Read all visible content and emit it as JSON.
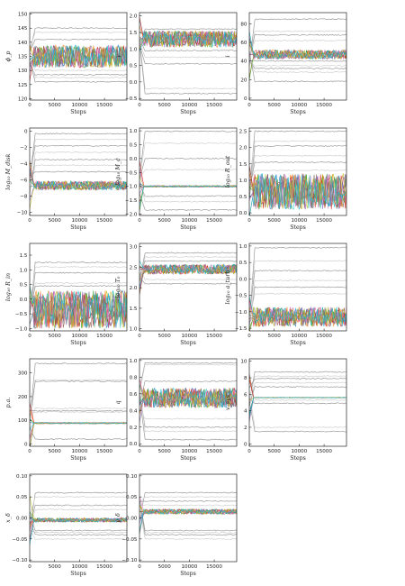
{
  "colors": {
    "burnin_gray": "#9a9a9a",
    "light_gray": "#cfcfcf",
    "chain_palette": [
      "#1f77b4",
      "#ff7f0e",
      "#2ca02c",
      "#d62728",
      "#9467bd",
      "#8c564b",
      "#e377c2",
      "#7f7f7f",
      "#bcbd22",
      "#17becf"
    ]
  },
  "chart_data": [
    {
      "type": "line",
      "ylabel": "ϕ_p",
      "xlabel": "Steps",
      "xlim": [
        0,
        19500
      ],
      "ylim": [
        119.5,
        150.5
      ],
      "xticks": [
        0,
        5000,
        10000,
        15000
      ],
      "yticks": [
        120,
        125,
        130,
        135,
        140,
        145,
        150
      ],
      "gray_levels": [
        145,
        143.5,
        141,
        130,
        128.5,
        127.5,
        126
      ],
      "colored_band": {
        "center": 135,
        "half_width": 4
      }
    },
    {
      "type": "line",
      "ylabel": "γ",
      "xlabel": "Steps",
      "xlim": [
        0,
        19500
      ],
      "ylim": [
        -0.55,
        2.1
      ],
      "xticks": [
        0,
        5000,
        10000,
        15000
      ],
      "yticks": [
        -0.5,
        0.0,
        0.5,
        1.0,
        1.5,
        2.0
      ],
      "gray_levels": [
        1.6,
        1.5,
        1.4,
        1.2,
        0.95,
        0.75,
        0.55,
        -0.2,
        -0.35
      ],
      "colored_band": {
        "center": 1.3,
        "half_width": 0.25
      }
    },
    {
      "type": "line",
      "ylabel": "i",
      "xlabel": "Steps",
      "xlim": [
        0,
        19500
      ],
      "ylim": [
        -2,
        92
      ],
      "xticks": [
        0,
        5000,
        10000,
        15000
      ],
      "yticks": [
        0,
        20,
        40,
        60,
        80
      ],
      "gray_levels": [
        85,
        72,
        68,
        62,
        40,
        35,
        32,
        28,
        18
      ],
      "colored_band": {
        "center": 47,
        "half_width": 5
      }
    },
    {
      "type": "line",
      "ylabel": "log₁₀ M_disk",
      "xlabel": "Steps",
      "xlim": [
        0,
        19500
      ],
      "ylim": [
        -10.4,
        0.4
      ],
      "xticks": [
        0,
        5000,
        10000,
        15000
      ],
      "yticks": [
        -10,
        -8,
        -6,
        -4,
        -2,
        0
      ],
      "gray_levels": [
        -0.3,
        -1.0,
        -1.8,
        -2.6,
        -3.5,
        -4.2,
        -5.0
      ],
      "colored_band": {
        "center": -6.7,
        "half_width": 0.55
      }
    },
    {
      "type": "line",
      "ylabel": "log₁₀ M_c",
      "xlabel": "Steps",
      "xlim": [
        0,
        19500
      ],
      "ylim": [
        -2.05,
        1.1
      ],
      "xticks": [
        0,
        5000,
        10000,
        15000
      ],
      "yticks": [
        -2.0,
        -1.5,
        -1.0,
        -0.5,
        0.0,
        0.5,
        1.0
      ],
      "gray_levels": [
        0.98,
        0.55,
        0.0,
        -0.4,
        -1.35,
        -1.55,
        -1.85
      ],
      "colored_band": {
        "center": -1.0,
        "half_width": 0.03
      }
    },
    {
      "type": "line",
      "ylabel": "log₁₀ R_out",
      "xlabel": "Steps",
      "xlim": [
        0,
        19500
      ],
      "ylim": [
        -0.08,
        2.6
      ],
      "xticks": [
        0,
        5000,
        10000,
        15000
      ],
      "yticks": [
        0.0,
        0.5,
        1.0,
        1.5,
        2.0,
        2.5
      ],
      "gray_levels": [
        2.5,
        2.2,
        2.05,
        1.75,
        1.55,
        1.3
      ],
      "colored_band": {
        "center": 0.65,
        "half_width": 0.55
      }
    },
    {
      "type": "line",
      "ylabel": "log₁₀ R_in",
      "xlabel": "Steps",
      "xlim": [
        0,
        19500
      ],
      "ylim": [
        -1.08,
        1.9
      ],
      "xticks": [
        0,
        5000,
        10000,
        15000
      ],
      "yticks": [
        -1.0,
        -0.5,
        0.0,
        0.5,
        1.0,
        1.5
      ],
      "gray_levels": [
        1.25,
        1.1,
        0.9,
        0.55,
        0.45
      ],
      "colored_band": {
        "center": -0.35,
        "half_width": 0.65
      }
    },
    {
      "type": "line",
      "ylabel": "log₁₀ T₀",
      "xlabel": "Steps",
      "xlim": [
        0,
        19500
      ],
      "ylim": [
        0.95,
        3.08
      ],
      "xticks": [
        0,
        5000,
        10000,
        15000
      ],
      "yticks": [
        1.0,
        1.5,
        2.0,
        2.5,
        3.0
      ],
      "gray_levels": [
        2.85,
        2.75,
        2.65,
        2.2,
        2.1
      ],
      "colored_band": {
        "center": 2.45,
        "half_width": 0.12
      }
    },
    {
      "type": "line",
      "ylabel": "log₁₀ a_turb",
      "xlabel": "Steps",
      "xlim": [
        0,
        19500
      ],
      "ylim": [
        -1.58,
        1.08
      ],
      "xticks": [
        0,
        5000,
        10000,
        15000
      ],
      "yticks": [
        -1.5,
        -1.0,
        -0.5,
        0.0,
        0.5,
        1.0
      ],
      "gray_levels": [
        0.95,
        0.55,
        0.25,
        -0.05,
        -0.25,
        -0.45
      ],
      "colored_band": {
        "center": -1.15,
        "half_width": 0.3
      }
    },
    {
      "type": "line",
      "ylabel": "p.a.",
      "xlabel": "Steps",
      "xlim": [
        0,
        19500
      ],
      "ylim": [
        -10,
        360
      ],
      "xticks": [
        0,
        5000,
        10000,
        15000
      ],
      "yticks": [
        0,
        100,
        200,
        300
      ],
      "gray_levels": [
        340,
        270,
        265,
        150,
        140,
        135,
        20
      ],
      "colored_band": {
        "center": 88,
        "half_width": 3
      }
    },
    {
      "type": "line",
      "ylabel": "q",
      "xlabel": "Steps",
      "xlim": [
        0,
        19500
      ],
      "ylim": [
        -0.03,
        1.02
      ],
      "xticks": [
        0,
        5000,
        10000,
        15000
      ],
      "yticks": [
        0.0,
        0.2,
        0.4,
        0.6,
        0.8,
        1.0
      ],
      "gray_levels": [
        0.97,
        0.95,
        0.75,
        0.3,
        0.2,
        0.15,
        0.05
      ],
      "colored_band": {
        "center": 0.55,
        "half_width": 0.12
      }
    },
    {
      "type": "line",
      "ylabel": "v_sys",
      "xlabel": "Steps",
      "xlim": [
        0,
        19500
      ],
      "ylim": [
        -0.3,
        10.3
      ],
      "xticks": [
        0,
        5000,
        10000,
        15000
      ],
      "yticks": [
        0,
        2,
        4,
        6,
        8,
        10
      ],
      "gray_levels": [
        8.7,
        8.2,
        7.9,
        7.4,
        6.9,
        5.3,
        4.9,
        2.0,
        1.5
      ],
      "colored_band": {
        "center": 5.6,
        "half_width": 0.04
      }
    },
    {
      "type": "line",
      "ylabel": "x_δ",
      "xlabel": "Steps",
      "xlim": [
        0,
        19500
      ],
      "ylim": [
        -0.104,
        0.104
      ],
      "xticks": [
        0,
        5000,
        10000,
        15000
      ],
      "yticks": [
        -0.1,
        -0.05,
        0.0,
        0.05,
        0.1
      ],
      "gray_levels": [
        0.06,
        0.05,
        0.03,
        0.02,
        -0.03,
        -0.035,
        -0.04,
        -0.05
      ],
      "colored_band": {
        "center": -0.005,
        "half_width": 0.005
      }
    },
    {
      "type": "line",
      "ylabel": "y_δ",
      "xlabel": "Steps",
      "xlim": [
        0,
        19500
      ],
      "ylim": [
        -0.104,
        0.104
      ],
      "xticks": [
        0,
        5000,
        10000,
        15000
      ],
      "yticks": [
        -0.1,
        -0.05,
        0.0,
        0.05,
        0.1
      ],
      "gray_levels": [
        0.06,
        0.05,
        0.04,
        0.03,
        -0.03,
        -0.035,
        -0.04,
        -0.05
      ],
      "colored_band": {
        "center": 0.015,
        "half_width": 0.006
      }
    }
  ]
}
